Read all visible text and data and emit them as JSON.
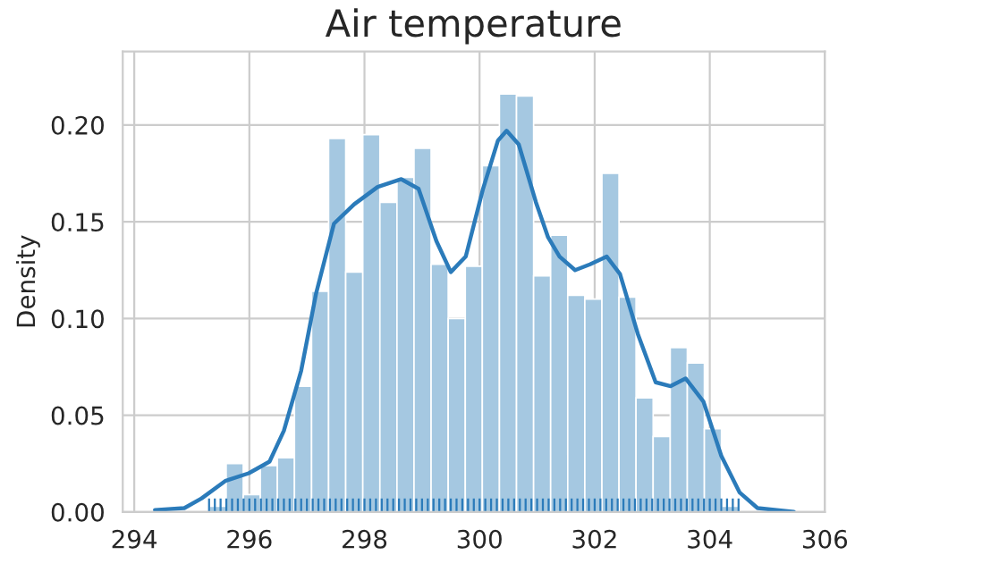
{
  "chart_data": {
    "type": "histogram",
    "title": "Air temperature",
    "ylabel": "Density",
    "bins": [
      295.3,
      295.597,
      295.894,
      296.19,
      296.487,
      296.784,
      297.081,
      297.377,
      297.674,
      297.971,
      298.268,
      298.565,
      298.861,
      299.158,
      299.455,
      299.752,
      300.048,
      300.345,
      300.642,
      300.939,
      301.235,
      301.532,
      301.829,
      302.126,
      302.423,
      302.719,
      303.016,
      303.313,
      303.61,
      303.906,
      304.203,
      304.5
    ],
    "values": [
      0.003,
      0.025,
      0.009,
      0.024,
      0.028,
      0.065,
      0.114,
      0.193,
      0.124,
      0.195,
      0.16,
      0.173,
      0.188,
      0.128,
      0.1,
      0.127,
      0.179,
      0.216,
      0.215,
      0.122,
      0.143,
      0.112,
      0.11,
      0.175,
      0.111,
      0.059,
      0.039,
      0.085,
      0.077,
      0.043,
      0.003
    ],
    "color": "#a5c8e1",
    "series": [
      {
        "type": "line",
        "color": "#2b7bba",
        "x": [
          294.36,
          294.87,
          295.17,
          295.58,
          295.99,
          296.35,
          296.6,
          296.9,
          297.16,
          297.47,
          297.82,
          298.23,
          298.64,
          298.94,
          299.25,
          299.5,
          299.76,
          300.06,
          300.32,
          300.47,
          300.68,
          300.98,
          301.19,
          301.39,
          301.66,
          301.92,
          302.21,
          302.44,
          302.75,
          303.06,
          303.32,
          303.58,
          303.89,
          304.2,
          304.52,
          304.83,
          305.46
        ],
        "values": [
          0.001,
          0.002,
          0.007,
          0.016,
          0.02,
          0.026,
          0.042,
          0.073,
          0.113,
          0.149,
          0.159,
          0.168,
          0.172,
          0.167,
          0.14,
          0.124,
          0.132,
          0.167,
          0.192,
          0.197,
          0.19,
          0.16,
          0.142,
          0.132,
          0.125,
          0.128,
          0.132,
          0.123,
          0.092,
          0.067,
          0.065,
          0.069,
          0.057,
          0.029,
          0.01,
          0.002,
          0.0
        ]
      },
      {
        "type": "bar",
        "color": "#2b7bba",
        "x": [
          295.3,
          295.4,
          295.5,
          295.6,
          295.7,
          295.8,
          295.9,
          296.0,
          296.1,
          296.2,
          296.3,
          296.4,
          296.5,
          296.6,
          296.7,
          296.8,
          296.9,
          297.0,
          297.1,
          297.2,
          297.3,
          297.4,
          297.5,
          297.6,
          297.7,
          297.8,
          297.9,
          298.0,
          298.1,
          298.2,
          298.3,
          298.4,
          298.5,
          298.6,
          298.7,
          298.8,
          298.9,
          299.0,
          299.1,
          299.2,
          299.3,
          299.4,
          299.5,
          299.6,
          299.7,
          299.8,
          299.9,
          300.0,
          300.1,
          300.2,
          300.3,
          300.4,
          300.5,
          300.6,
          300.7,
          300.8,
          300.9,
          301.0,
          301.1,
          301.2,
          301.3,
          301.4,
          301.5,
          301.6,
          301.7,
          301.8,
          301.9,
          302.0,
          302.1,
          302.2,
          302.3,
          302.4,
          302.5,
          302.6,
          302.7,
          302.8,
          302.9,
          303.0,
          303.1,
          303.2,
          303.3,
          303.4,
          303.5,
          303.6,
          303.7,
          303.8,
          303.9,
          304.0,
          304.1,
          304.2,
          304.3,
          304.4,
          304.5
        ],
        "values": [
          0.007,
          0.007,
          0.007,
          0.007,
          0.007,
          0.007,
          0.007,
          0.007,
          0.007,
          0.007,
          0.007,
          0.007,
          0.007,
          0.007,
          0.007,
          0.007,
          0.007,
          0.007,
          0.007,
          0.007,
          0.007,
          0.007,
          0.007,
          0.007,
          0.007,
          0.007,
          0.007,
          0.007,
          0.007,
          0.007,
          0.007,
          0.007,
          0.007,
          0.007,
          0.007,
          0.007,
          0.007,
          0.007,
          0.007,
          0.007,
          0.007,
          0.007,
          0.007,
          0.007,
          0.007,
          0.007,
          0.007,
          0.007,
          0.007,
          0.007,
          0.007,
          0.007,
          0.007,
          0.007,
          0.007,
          0.007,
          0.007,
          0.007,
          0.007,
          0.007,
          0.007,
          0.007,
          0.007,
          0.007,
          0.007,
          0.007,
          0.007,
          0.007,
          0.007,
          0.007,
          0.007,
          0.007,
          0.007,
          0.007,
          0.007,
          0.007,
          0.007,
          0.007,
          0.007,
          0.007,
          0.007,
          0.007,
          0.007,
          0.007,
          0.007,
          0.007,
          0.007,
          0.007,
          0.007,
          0.007,
          0.007,
          0.007,
          0.007
        ]
      }
    ],
    "xlim": [
      293.8,
      306.0
    ],
    "ylim": [
      0,
      0.238
    ],
    "xticks": [
      294,
      296,
      298,
      300,
      302,
      304,
      306
    ],
    "yticks": [
      {
        "value": 0,
        "label": "0.00"
      },
      {
        "value": 0.05,
        "label": "0.05"
      },
      {
        "value": 0.1,
        "label": "0.10"
      },
      {
        "value": 0.15,
        "label": "0.15"
      },
      {
        "value": 0.2,
        "label": "0.20"
      }
    ],
    "grid": true
  }
}
